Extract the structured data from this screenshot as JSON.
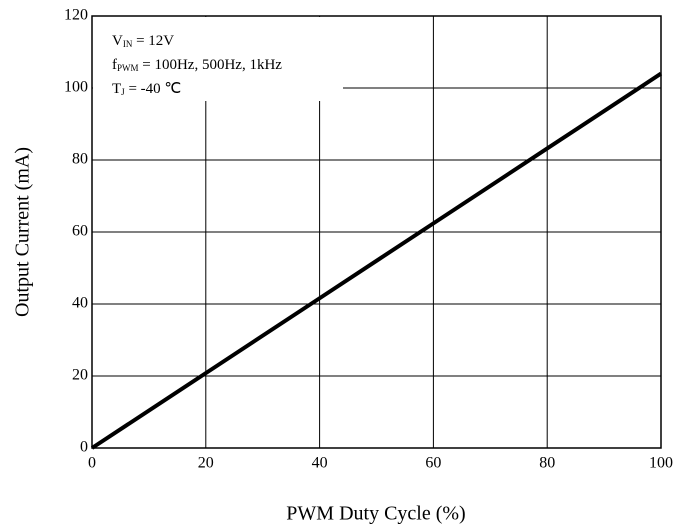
{
  "chart_data": {
    "type": "line",
    "x_label": "PWM Duty Cycle (%)",
    "y_label": "Output Current (mA)",
    "annotations": [
      {
        "main": "V",
        "sub": "IN",
        "rest": " = 12V"
      },
      {
        "main": "f",
        "sub": "PWM",
        "rest": " = 100Hz, 500Hz, 1kHz"
      },
      {
        "main": "T",
        "sub": "J",
        "rest": " = -40 ℃"
      }
    ],
    "x": [
      0,
      20,
      40,
      60,
      80,
      95,
      100
    ],
    "series": [
      {
        "name": null,
        "color": "#000000",
        "values": [
          0,
          20.8,
          41.6,
          62.4,
          83.2,
          98.8,
          104
        ]
      }
    ],
    "xlim": [
      0,
      100
    ],
    "ylim": [
      0,
      120
    ],
    "xticks": [
      0,
      20,
      40,
      60,
      80,
      100
    ],
    "yticks": [
      0,
      20,
      40,
      60,
      80,
      100,
      120
    ],
    "grid": true
  }
}
